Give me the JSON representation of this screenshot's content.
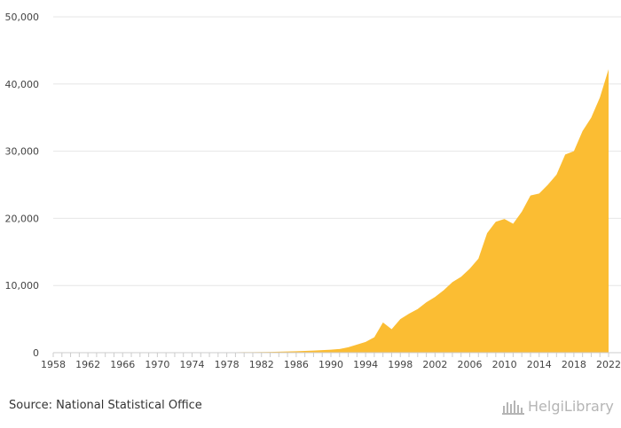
{
  "source": {
    "label": "Source:",
    "text": "National Statistical Office"
  },
  "logo": {
    "name": "HelgiLibrary"
  },
  "colors": {
    "area": "#FBBD33",
    "grid": "#e6e6e6",
    "axis": "#cccccc"
  },
  "chart_data": {
    "type": "area",
    "title": "",
    "xlabel": "",
    "ylabel": "",
    "ylim": [
      0,
      50000
    ],
    "xlim": [
      1958,
      2022
    ],
    "yticks": [
      0,
      10000,
      20000,
      30000,
      40000,
      50000
    ],
    "ytick_labels": [
      "0",
      "10,000",
      "20,000",
      "30,000",
      "40,000",
      "50,000"
    ],
    "xtick_labels": [
      "1958",
      "1962",
      "1966",
      "1970",
      "1974",
      "1978",
      "1982",
      "1986",
      "1990",
      "1994",
      "1998",
      "2002",
      "2006",
      "2010",
      "2014",
      "2018",
      "2022"
    ],
    "grid": true,
    "legend": "none",
    "x": [
      1958,
      1959,
      1960,
      1961,
      1962,
      1963,
      1964,
      1965,
      1966,
      1967,
      1968,
      1969,
      1970,
      1971,
      1972,
      1973,
      1974,
      1975,
      1976,
      1977,
      1978,
      1979,
      1980,
      1981,
      1982,
      1983,
      1984,
      1985,
      1986,
      1987,
      1988,
      1989,
      1990,
      1991,
      1992,
      1993,
      1994,
      1995,
      1996,
      1997,
      1998,
      1999,
      2000,
      2001,
      2002,
      2003,
      2004,
      2005,
      2006,
      2007,
      2008,
      2009,
      2010,
      2011,
      2012,
      2013,
      2014,
      2015,
      2016,
      2017,
      2018,
      2019,
      2020,
      2021,
      2022
    ],
    "values": [
      20,
      20,
      20,
      20,
      20,
      20,
      20,
      20,
      20,
      20,
      20,
      25,
      25,
      30,
      30,
      35,
      40,
      45,
      50,
      55,
      60,
      70,
      80,
      90,
      100,
      120,
      150,
      180,
      220,
      260,
      320,
      380,
      450,
      550,
      800,
      1200,
      1600,
      2300,
      4500,
      3500,
      5000,
      5800,
      6500,
      7500,
      8300,
      9300,
      10500,
      11300,
      12500,
      14000,
      17800,
      19500,
      19900,
      19200,
      21000,
      23400,
      23700,
      25000,
      26500,
      29500,
      30000,
      33000,
      35000,
      38000,
      42200
    ]
  }
}
